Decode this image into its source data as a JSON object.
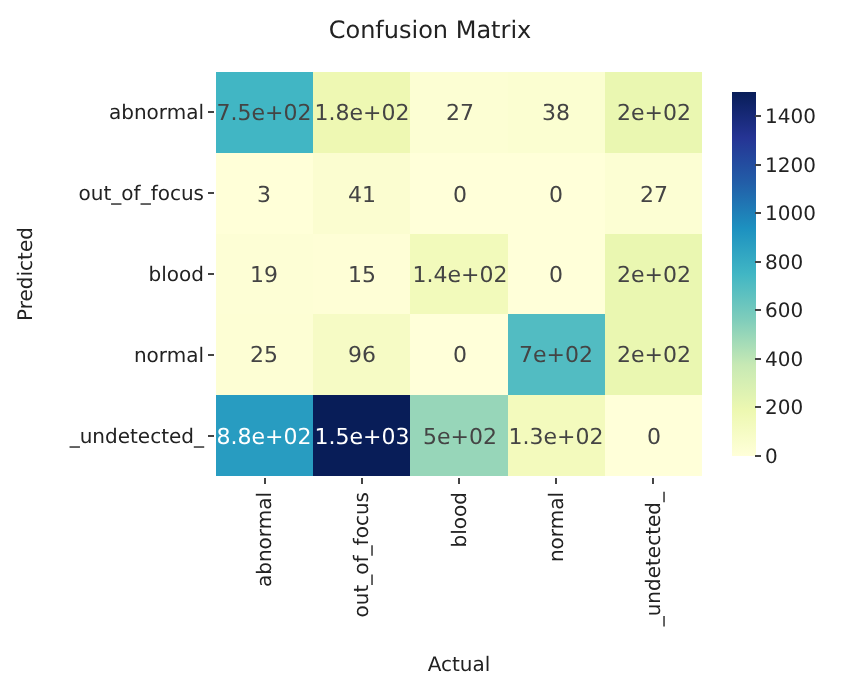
{
  "chart_data": {
    "type": "heatmap",
    "title": "Confusion Matrix",
    "xlabel": "Actual",
    "ylabel": "Predicted",
    "categories": [
      "abnormal",
      "out_of_focus",
      "blood",
      "normal",
      "_undetected_"
    ],
    "y_categories": [
      "abnormal",
      "out_of_focus",
      "blood",
      "normal",
      "_undetected_"
    ],
    "cells": [
      [
        750,
        180,
        27,
        38,
        200
      ],
      [
        3,
        41,
        0,
        0,
        27
      ],
      [
        19,
        15,
        140,
        0,
        200
      ],
      [
        25,
        96,
        0,
        700,
        200
      ],
      [
        880,
        1500,
        500,
        130,
        0
      ]
    ],
    "cell_labels": [
      [
        "7.5e+02",
        "1.8e+02",
        "27",
        "38",
        "2e+02"
      ],
      [
        "3",
        "41",
        "0",
        "0",
        "27"
      ],
      [
        "19",
        "15",
        "1.4e+02",
        "0",
        "2e+02"
      ],
      [
        "25",
        "96",
        "0",
        "7e+02",
        "2e+02"
      ],
      [
        "8.8e+02",
        "1.5e+03",
        "5e+02",
        "1.3e+02",
        "0"
      ]
    ],
    "clim": [
      0,
      1500
    ],
    "cticks": [
      0,
      200,
      400,
      600,
      800,
      1000,
      1200,
      1400
    ]
  }
}
